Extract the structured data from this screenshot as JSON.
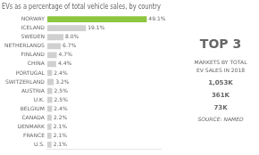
{
  "chart_data": {
    "type": "bar",
    "orientation": "horizontal",
    "title": "EVs as a percentage of total vehicle sales, by country",
    "categories": [
      "NORWAY",
      "ICELAND",
      "SWEDEN",
      "NETHERLANDS",
      "FINLAND",
      "CHINA",
      "PORTUGAL",
      "SWITZERLAND",
      "AUSTRIA",
      "U.K.",
      "BELGIUM",
      "CANADA",
      "DENMARK",
      "FRANCE",
      "U.S."
    ],
    "values": [
      49.1,
      19.1,
      8.0,
      6.7,
      4.7,
      4.4,
      2.4,
      3.2,
      2.5,
      2.5,
      2.4,
      2.2,
      2.1,
      2.1,
      2.1
    ],
    "value_labels": [
      "49.1%",
      "19.1%",
      "8.0%",
      "6.7%",
      "4.7%",
      "4.4%",
      "2.4%",
      "3.2%",
      "2.5%",
      "2.5%",
      "2.4%",
      "2.2%",
      "2.1%",
      "2.1%",
      "2.1%"
    ],
    "data_labels": true,
    "colors": [
      "#8dc63f",
      "#d0d0d0",
      "#d0d0d0",
      "#d0d0d0",
      "#d0d0d0",
      "#d0d0d0",
      "#d0d0d0",
      "#d0d0d0",
      "#d0d0d0",
      "#d0d0d0",
      "#d0d0d0",
      "#d0d0d0",
      "#d0d0d0",
      "#d0d0d0",
      "#d0d0d0"
    ],
    "xlim": [
      0,
      56
    ],
    "grid": false,
    "tick_labels": "y",
    "annotations": [
      "TOP 3",
      "MARKETS BY TOTAL\nEV SALES IN 2018",
      "1,053K",
      "361K",
      "73K",
      "SOURCE: NAMED"
    ]
  }
}
